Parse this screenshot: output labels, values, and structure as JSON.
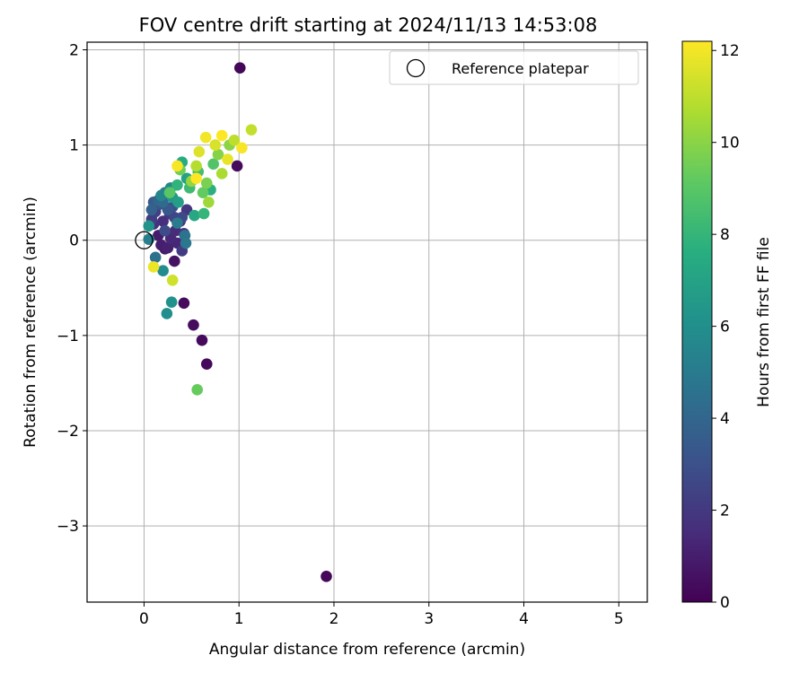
{
  "chart_data": {
    "type": "scatter",
    "title": "FOV centre drift starting at 2024/11/13 14:53:08",
    "xlabel": "Angular distance from reference (arcmin)",
    "ylabel": "Rotation from reference (arcmin)",
    "xlim": [
      -0.6,
      5.3
    ],
    "ylim": [
      -3.8,
      2.08
    ],
    "xticks": [
      0,
      1,
      2,
      3,
      4,
      5
    ],
    "yticks": [
      -3,
      -2,
      -1,
      0,
      1,
      2
    ],
    "xtick_labels": [
      "0",
      "1",
      "2",
      "3",
      "4",
      "5"
    ],
    "ytick_labels": [
      "−3",
      "−2",
      "−1",
      "0",
      "1",
      "2"
    ],
    "grid": true,
    "colormap": "viridis",
    "colorbar": {
      "label": "Hours from first FF file",
      "min": 0,
      "max": 12.2,
      "ticks": [
        0,
        2,
        4,
        6,
        8,
        10,
        12
      ],
      "tick_labels": [
        "0",
        "2",
        "4",
        "6",
        "8",
        "10",
        "12"
      ]
    },
    "legend": {
      "position": "top-right",
      "entries": [
        {
          "label": "Reference platepar",
          "marker": "open-circle",
          "x": 0,
          "y": 0
        }
      ]
    },
    "points": [
      {
        "x": 1.01,
        "y": 1.81,
        "h": 0.2
      },
      {
        "x": 1.92,
        "y": -3.53,
        "h": 0.2
      },
      {
        "x": 0.98,
        "y": 0.78,
        "h": 0.3
      },
      {
        "x": 0.42,
        "y": -0.66,
        "h": 0.3
      },
      {
        "x": 0.52,
        "y": -0.89,
        "h": 0.4
      },
      {
        "x": 0.61,
        "y": -1.05,
        "h": 0.3
      },
      {
        "x": 0.66,
        "y": -1.3,
        "h": 0.3
      },
      {
        "x": 0.32,
        "y": -0.22,
        "h": 0.6
      },
      {
        "x": 0.22,
        "y": -0.09,
        "h": 0.8
      },
      {
        "x": 0.15,
        "y": 0.05,
        "h": 0.9
      },
      {
        "x": 0.18,
        "y": -0.05,
        "h": 1.0
      },
      {
        "x": 0.25,
        "y": -0.08,
        "h": 1.1
      },
      {
        "x": 0.35,
        "y": -0.03,
        "h": 1.3
      },
      {
        "x": 0.28,
        "y": 0.02,
        "h": 1.4
      },
      {
        "x": 0.33,
        "y": 0.1,
        "h": 1.5
      },
      {
        "x": 0.38,
        "y": 0.2,
        "h": 1.6
      },
      {
        "x": 0.2,
        "y": 0.2,
        "h": 1.6
      },
      {
        "x": 0.1,
        "y": 0.17,
        "h": 1.7
      },
      {
        "x": 0.42,
        "y": 0.07,
        "h": 1.8
      },
      {
        "x": 0.45,
        "y": 0.32,
        "h": 1.9
      },
      {
        "x": 0.27,
        "y": 0.28,
        "h": 2.0
      },
      {
        "x": 0.4,
        "y": -0.11,
        "h": 2.1
      },
      {
        "x": 0.08,
        "y": 0.22,
        "h": 2.2
      },
      {
        "x": 0.12,
        "y": 0.3,
        "h": 2.3
      },
      {
        "x": 0.32,
        "y": 0.24,
        "h": 2.5
      },
      {
        "x": 0.4,
        "y": 0.24,
        "h": 2.7
      },
      {
        "x": 0.22,
        "y": 0.1,
        "h": 2.8
      },
      {
        "x": 0.3,
        "y": 0.35,
        "h": 3.0
      },
      {
        "x": 0.17,
        "y": 0.38,
        "h": 3.2
      },
      {
        "x": 0.25,
        "y": 0.32,
        "h": 3.4
      },
      {
        "x": 0.1,
        "y": 0.4,
        "h": 3.5
      },
      {
        "x": 0.08,
        "y": 0.32,
        "h": 3.8
      },
      {
        "x": 0.15,
        "y": 0.42,
        "h": 4.0
      },
      {
        "x": 0.2,
        "y": 0.4,
        "h": 4.2
      },
      {
        "x": 0.12,
        "y": -0.18,
        "h": 4.5
      },
      {
        "x": 0.43,
        "y": 0.05,
        "h": 4.6
      },
      {
        "x": 0.44,
        "y": -0.03,
        "h": 4.8
      },
      {
        "x": 0.35,
        "y": 0.18,
        "h": 5.0
      },
      {
        "x": 0.05,
        "y": 0.01,
        "h": 5.2
      },
      {
        "x": 0.22,
        "y": 0.5,
        "h": 5.3
      },
      {
        "x": 0.18,
        "y": 0.47,
        "h": 5.5
      },
      {
        "x": 0.28,
        "y": 0.55,
        "h": 5.6
      },
      {
        "x": 0.2,
        "y": -0.32,
        "h": 5.9
      },
      {
        "x": 0.24,
        "y": -0.77,
        "h": 6.0
      },
      {
        "x": 0.29,
        "y": -0.65,
        "h": 6.1
      },
      {
        "x": 0.05,
        "y": 0.15,
        "h": 6.2
      },
      {
        "x": 0.3,
        "y": 0.45,
        "h": 6.5
      },
      {
        "x": 0.36,
        "y": 0.4,
        "h": 6.8
      },
      {
        "x": 0.45,
        "y": 0.65,
        "h": 7.0
      },
      {
        "x": 0.53,
        "y": 0.26,
        "h": 7.3
      },
      {
        "x": 0.4,
        "y": 0.82,
        "h": 7.5
      },
      {
        "x": 0.7,
        "y": 0.53,
        "h": 7.7
      },
      {
        "x": 0.35,
        "y": 0.58,
        "h": 7.9
      },
      {
        "x": 0.63,
        "y": 0.28,
        "h": 8.0
      },
      {
        "x": 0.48,
        "y": 0.55,
        "h": 8.3
      },
      {
        "x": 0.57,
        "y": 0.72,
        "h": 8.5
      },
      {
        "x": 0.73,
        "y": 0.8,
        "h": 8.8
      },
      {
        "x": 0.27,
        "y": 0.5,
        "h": 9.0
      },
      {
        "x": 0.62,
        "y": 0.5,
        "h": 9.2
      },
      {
        "x": 0.56,
        "y": -1.57,
        "h": 9.3
      },
      {
        "x": 0.38,
        "y": 0.74,
        "h": 9.5
      },
      {
        "x": 0.66,
        "y": 0.6,
        "h": 9.7
      },
      {
        "x": 0.78,
        "y": 0.9,
        "h": 9.9
      },
      {
        "x": 0.9,
        "y": 1.0,
        "h": 10.0
      },
      {
        "x": 0.5,
        "y": 0.62,
        "h": 10.2
      },
      {
        "x": 0.68,
        "y": 0.4,
        "h": 10.4
      },
      {
        "x": 0.82,
        "y": 0.7,
        "h": 10.6
      },
      {
        "x": 0.55,
        "y": 0.78,
        "h": 10.8
      },
      {
        "x": 0.95,
        "y": 1.05,
        "h": 11.0
      },
      {
        "x": 1.13,
        "y": 1.16,
        "h": 11.1
      },
      {
        "x": 0.3,
        "y": -0.42,
        "h": 11.3
      },
      {
        "x": 0.75,
        "y": 1.0,
        "h": 11.5
      },
      {
        "x": 0.58,
        "y": 0.93,
        "h": 11.6
      },
      {
        "x": 0.88,
        "y": 0.85,
        "h": 11.8
      },
      {
        "x": 0.1,
        "y": -0.28,
        "h": 11.9
      },
      {
        "x": 0.65,
        "y": 1.08,
        "h": 12.0
      },
      {
        "x": 1.03,
        "y": 0.97,
        "h": 12.1
      },
      {
        "x": 0.35,
        "y": 0.78,
        "h": 12.1
      },
      {
        "x": 0.82,
        "y": 1.1,
        "h": 12.2
      },
      {
        "x": 0.55,
        "y": 0.65,
        "h": 12.2
      }
    ]
  }
}
